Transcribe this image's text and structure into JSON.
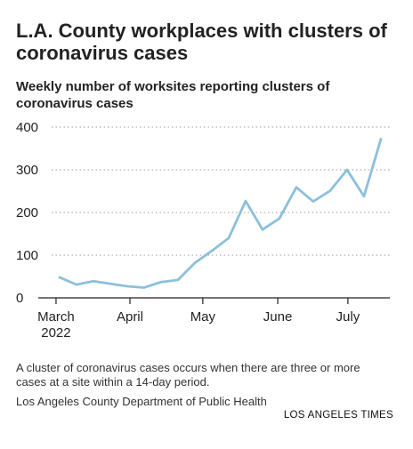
{
  "chart_data": {
    "type": "line",
    "title": "L.A. County workplaces with clusters of coronavirus cases",
    "subtitle": "Weekly number of worksites reporting clusters of coronavirus cases",
    "note": "A cluster of coronavirus cases occurs when there are three or more cases at a site within a 14-day period.",
    "source": "Los Angeles County Department of Public Health",
    "credit": "LOS ANGELES TIMES",
    "series": [
      {
        "color": "#8cc0db",
        "values": [
          48,
          31,
          39,
          33,
          27,
          24,
          37,
          42,
          82,
          110,
          140,
          227,
          160,
          186,
          259,
          226,
          251,
          300,
          238,
          372
        ]
      }
    ],
    "xlim": [
      -1.26,
      19.53
    ],
    "xticks": [
      {
        "value": -0.21,
        "label": "March 2022"
      },
      {
        "value": 4.16,
        "label": "April"
      },
      {
        "value": 8.47,
        "label": "May"
      },
      {
        "value": 12.9,
        "label": "June"
      },
      {
        "value": 17.05,
        "label": "July"
      }
    ],
    "ylim": [
      0,
      400
    ],
    "yticks": [
      0,
      100,
      200,
      300,
      400
    ],
    "grid": true
  }
}
